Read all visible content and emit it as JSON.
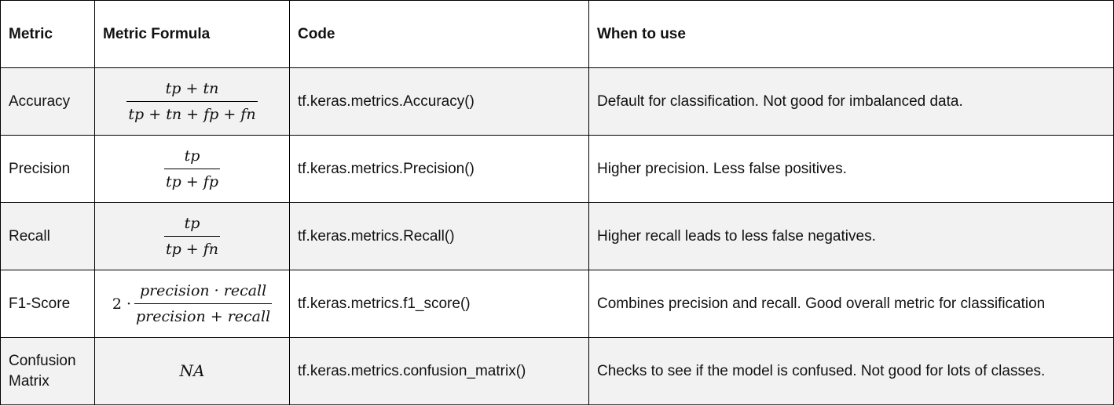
{
  "headers": {
    "metric": "Metric",
    "formula": "Metric Formula",
    "code": "Code",
    "when": "When to use"
  },
  "rows": [
    {
      "metric": "Accuracy",
      "formula_num": "tp + tn",
      "formula_den": "tp + tn + fp + fn",
      "code": "tf.keras.metrics.Accuracy()",
      "when": "Default for classification. Not good for imbalanced data."
    },
    {
      "metric": "Precision",
      "formula_num": "tp",
      "formula_den": "tp + fp",
      "code": "tf.keras.metrics.Precision()",
      "when": "Higher precision. Less false positives."
    },
    {
      "metric": "Recall",
      "formula_num": "tp",
      "formula_den": "tp + fn",
      "code": "tf.keras.metrics.Recall()",
      "when": "Higher recall leads to less false negatives."
    },
    {
      "metric": "F1-Score",
      "formula_coef": "2 ·",
      "formula_num": "precision · recall",
      "formula_den": "precision + recall",
      "code": "tf.keras.metrics.f1_score()",
      "when": "Combines precision and recall. Good overall metric for classification"
    },
    {
      "metric": "Confusion Matrix",
      "formula_text": "NA",
      "code": "tf.keras.metrics.confusion_matrix()",
      "when": "Checks to see if the model is confused. Not good for lots of classes."
    }
  ]
}
